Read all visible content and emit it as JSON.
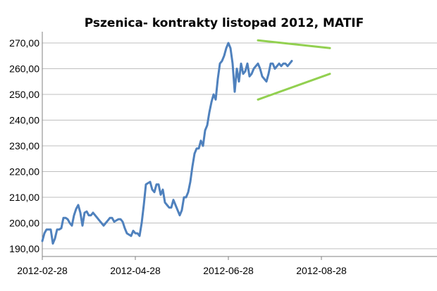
{
  "chart_data": {
    "type": "line",
    "title": "Pszenica- kontrakty listopad 2012, MATIF",
    "xlabel": "",
    "ylabel": "",
    "y_tick_labels": [
      "190,00",
      "200,00",
      "210,00",
      "220,00",
      "230,00",
      "240,00",
      "250,00",
      "260,00",
      "270,00"
    ],
    "ylim": [
      187,
      273
    ],
    "x_tick_labels": [
      "2012-02-28",
      "2012-04-28",
      "2012-06-28",
      "2012-08-28"
    ],
    "x_tick_index": [
      0,
      44,
      88,
      132
    ],
    "grid": true,
    "legend": "none",
    "series": [
      {
        "color": "#4f81bd",
        "values": [
          193,
          196,
          197.5,
          197.5,
          197.5,
          192,
          194,
          197.5,
          197.5,
          198,
          202,
          202,
          201.5,
          200,
          199,
          203,
          205.5,
          207,
          204,
          199,
          204,
          204.5,
          203,
          203,
          204,
          203,
          202,
          201,
          200,
          199,
          200,
          201,
          202,
          202,
          200.5,
          201,
          201.5,
          201.5,
          200.5,
          198,
          196,
          195.5,
          195,
          197,
          196,
          196,
          195,
          200,
          207,
          215,
          215.5,
          216,
          213,
          212,
          215,
          215,
          211,
          213,
          208,
          207,
          206,
          206,
          209,
          207,
          205,
          203,
          205,
          210,
          210,
          212,
          216,
          222,
          227,
          229,
          229,
          232,
          230,
          236,
          238,
          243,
          247,
          250,
          248,
          256,
          262,
          263,
          265,
          268,
          270,
          268,
          262,
          251,
          260,
          255,
          262,
          258,
          259,
          262,
          257,
          258,
          260,
          261,
          262,
          260,
          257,
          256,
          255,
          258,
          262,
          262,
          260,
          261,
          262,
          261,
          262,
          262,
          261,
          262,
          263
        ]
      },
      {
        "color": "#92d050",
        "values": [
          {
            "x": 102,
            "y": 271
          },
          {
            "x": 136,
            "y": 268
          }
        ]
      },
      {
        "color": "#92d050",
        "values": [
          {
            "x": 102,
            "y": 248
          },
          {
            "x": 136,
            "y": 258
          }
        ]
      }
    ]
  }
}
